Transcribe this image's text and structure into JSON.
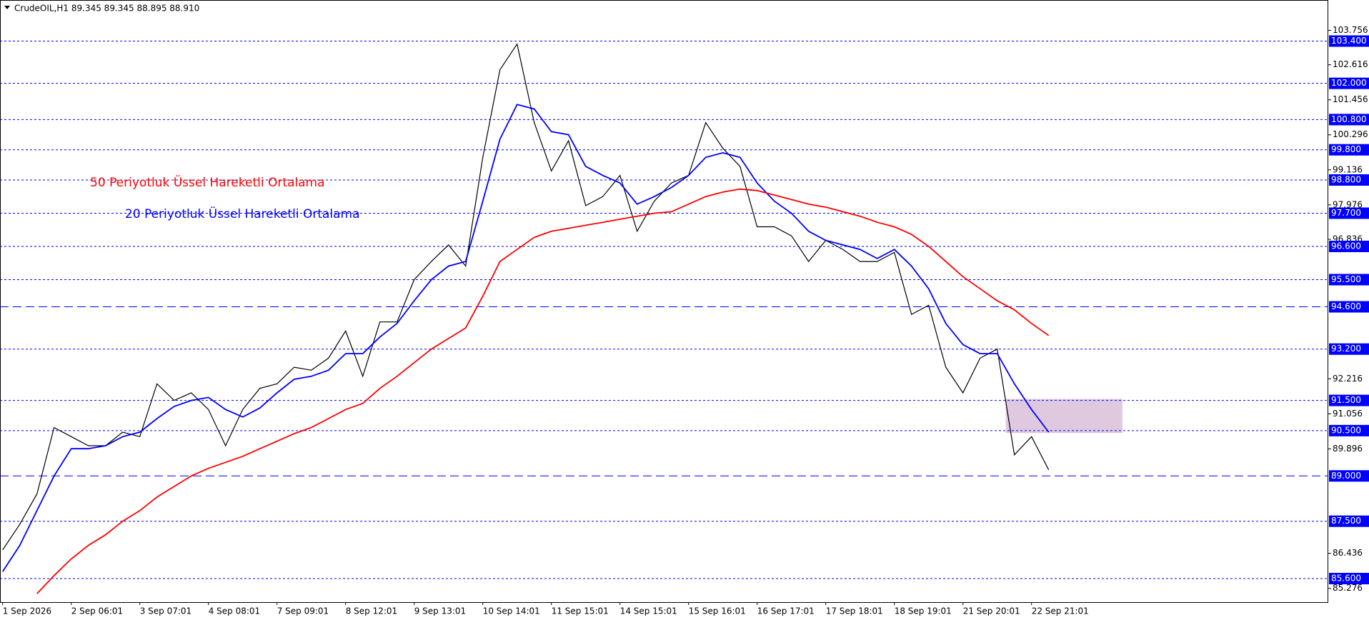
{
  "chart_data": {
    "type": "line",
    "title": "CrudeOIL,H1  89.345 89.345 88.895 88.910",
    "annotations": [
      {
        "text": "50 Periyotluk Üssel Hareketli Ortalama",
        "color": "#ff0000"
      },
      {
        "text": "20 Periyotluk Üssel Hareketli Ortalama",
        "color": "#0000ff"
      }
    ],
    "categories": [
      "1 Sep 2026",
      null,
      null,
      null,
      "2 Sep 06:01",
      null,
      null,
      null,
      "3 Sep 07:01",
      null,
      null,
      null,
      "4 Sep 08:01",
      null,
      null,
      null,
      "7 Sep 09:01",
      null,
      null,
      null,
      "8 Sep 12:01",
      null,
      null,
      null,
      "9 Sep 13:01",
      null,
      null,
      null,
      "10 Sep 14:01",
      null,
      null,
      null,
      "11 Sep 15:01",
      null,
      null,
      null,
      "14 Sep 15:01",
      null,
      null,
      null,
      "15 Sep 16:01",
      null,
      null,
      null,
      "16 Sep 17:01",
      null,
      null,
      null,
      "17 Sep 18:01",
      null,
      null,
      null,
      "18 Sep 19:01",
      null,
      null,
      null,
      "21 Sep 20:01",
      null,
      null,
      null,
      "22 Sep 21:01",
      null
    ],
    "series": [
      {
        "name": "CrudeOIL",
        "color": "#000000",
        "values": [
          86.55,
          87.4,
          88.4,
          90.6,
          90.3,
          90.0,
          90.0,
          90.45,
          90.3,
          92.05,
          91.5,
          91.75,
          91.2,
          90.0,
          91.2,
          91.9,
          92.05,
          92.6,
          92.5,
          92.9,
          93.8,
          92.3,
          94.1,
          94.1,
          95.5,
          96.1,
          96.65,
          95.95,
          99.55,
          102.45,
          103.3,
          100.7,
          99.1,
          100.1,
          97.95,
          98.25,
          98.95,
          97.1,
          98.1,
          98.7,
          98.95,
          100.7,
          99.85,
          99.25,
          97.25,
          97.25,
          96.95,
          96.1,
          96.8,
          96.5,
          96.1,
          96.1,
          96.4,
          94.35,
          94.65,
          92.6,
          91.75,
          92.9,
          93.2,
          89.7,
          90.3,
          89.2
        ]
      },
      {
        "name": "EMA 20",
        "color": "#0000ff",
        "values": [
          85.83,
          86.7,
          87.85,
          89.0,
          89.9,
          89.9,
          90.0,
          90.3,
          90.45,
          90.9,
          91.3,
          91.5,
          91.6,
          91.2,
          90.95,
          91.25,
          91.75,
          92.2,
          92.3,
          92.5,
          93.05,
          93.05,
          93.6,
          94.05,
          94.8,
          95.5,
          95.95,
          96.1,
          98.1,
          100.15,
          101.3,
          101.15,
          100.4,
          100.3,
          99.25,
          98.95,
          98.7,
          98.0,
          98.25,
          98.55,
          98.95,
          99.55,
          99.7,
          99.55,
          98.7,
          98.1,
          97.7,
          97.1,
          96.8,
          96.65,
          96.5,
          96.2,
          96.5,
          95.95,
          95.2,
          94.05,
          93.35,
          93.05,
          93.05,
          92.05,
          91.2,
          90.45
        ]
      },
      {
        "name": "EMA 50",
        "color": "#ff0000",
        "values": [
          null,
          null,
          85.1,
          85.7,
          86.25,
          86.7,
          87.05,
          87.5,
          87.85,
          88.3,
          88.65,
          89.0,
          89.25,
          89.45,
          89.65,
          89.9,
          90.15,
          90.4,
          90.6,
          90.9,
          91.2,
          91.4,
          91.9,
          92.3,
          92.75,
          93.2,
          93.55,
          93.9,
          94.95,
          96.1,
          96.5,
          96.9,
          97.1,
          97.2,
          97.3,
          97.4,
          97.5,
          97.6,
          97.7,
          97.75,
          98.0,
          98.25,
          98.4,
          98.5,
          98.45,
          98.3,
          98.15,
          98.0,
          97.9,
          97.75,
          97.6,
          97.4,
          97.25,
          97.0,
          96.6,
          96.1,
          95.6,
          95.2,
          94.8,
          94.5,
          94.05,
          93.65
        ]
      }
    ],
    "ylim": [
      84.82,
      104.76
    ],
    "yticks": [
      103.756,
      102.616,
      101.456,
      100.296,
      99.136,
      97.976,
      96.836,
      92.216,
      91.056,
      89.896,
      86.436,
      85.276
    ],
    "levels": [
      {
        "value": 103.4,
        "label": "103.400",
        "dash": "short"
      },
      {
        "value": 102.0,
        "label": "102.000",
        "dash": "short"
      },
      {
        "value": 100.8,
        "label": "100.800",
        "dash": "short"
      },
      {
        "value": 99.8,
        "label": "99.800",
        "dash": "short"
      },
      {
        "value": 98.8,
        "label": "98.800",
        "dash": "short"
      },
      {
        "value": 97.7,
        "label": "97.700",
        "dash": "short"
      },
      {
        "value": 96.6,
        "label": "96.600",
        "dash": "short"
      },
      {
        "value": 95.5,
        "label": "95.500",
        "dash": "short"
      },
      {
        "value": 94.6,
        "label": "94.600",
        "dash": "long"
      },
      {
        "value": 93.2,
        "label": "93.200",
        "dash": "short"
      },
      {
        "value": 91.5,
        "label": "91.500",
        "dash": "short"
      },
      {
        "value": 90.5,
        "label": "90.500",
        "dash": "short"
      },
      {
        "value": 89.0,
        "label": "89.000",
        "dash": "long"
      },
      {
        "value": 87.5,
        "label": "87.500",
        "dash": "short"
      },
      {
        "value": 85.6,
        "label": "85.600",
        "dash": "short"
      }
    ],
    "zone": {
      "x": [
        58.5,
        65.3
      ],
      "y": [
        90.42,
        91.55
      ],
      "color": "#d8bfd8"
    }
  }
}
